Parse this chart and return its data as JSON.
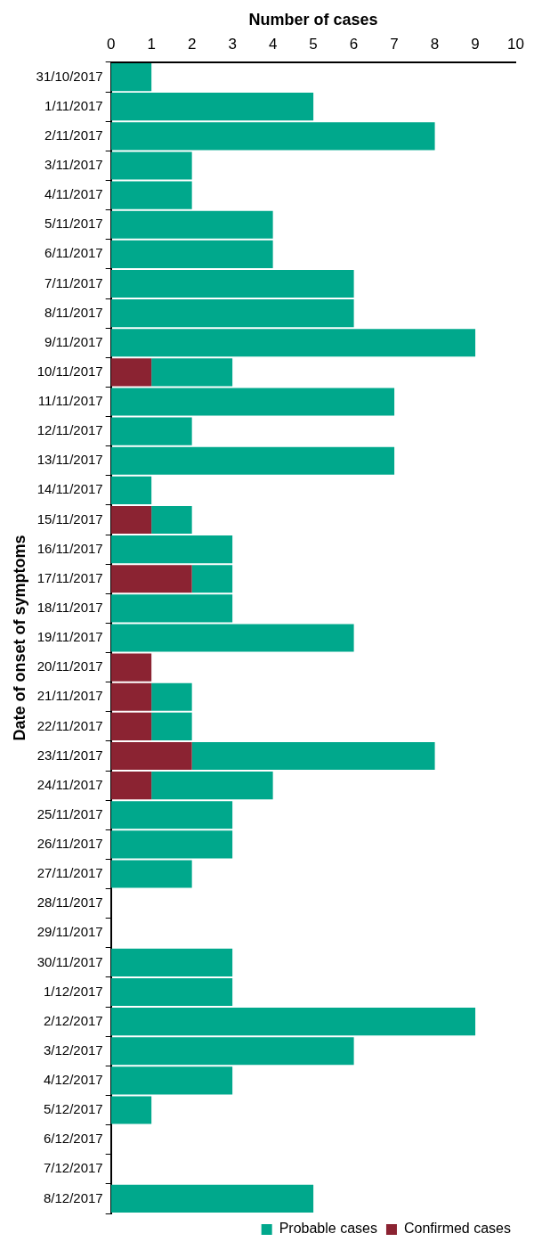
{
  "chart_data": {
    "type": "bar",
    "orientation": "horizontal",
    "stacked": true,
    "xlabel": "Number of cases",
    "ylabel": "Date of onset of symptoms",
    "categories": [
      "31/10/2017",
      "1/11/2017",
      "2/11/2017",
      "3/11/2017",
      "4/11/2017",
      "5/11/2017",
      "6/11/2017",
      "7/11/2017",
      "8/11/2017",
      "9/11/2017",
      "10/11/2017",
      "11/11/2017",
      "12/11/2017",
      "13/11/2017",
      "14/11/2017",
      "15/11/2017",
      "16/11/2017",
      "17/11/2017",
      "18/11/2017",
      "19/11/2017",
      "20/11/2017",
      "21/11/2017",
      "22/11/2017",
      "23/11/2017",
      "24/11/2017",
      "25/11/2017",
      "26/11/2017",
      "27/11/2017",
      "28/11/2017",
      "29/11/2017",
      "30/11/2017",
      "1/12/2017",
      "2/12/2017",
      "3/12/2017",
      "4/12/2017",
      "5/12/2017",
      "6/12/2017",
      "7/12/2017",
      "8/12/2017"
    ],
    "series": [
      {
        "name": "Confirmed cases",
        "color": "#8b2332",
        "values": [
          null,
          null,
          null,
          null,
          null,
          null,
          null,
          null,
          null,
          null,
          1,
          null,
          null,
          null,
          null,
          1,
          null,
          2,
          null,
          null,
          1,
          1,
          1,
          2,
          1,
          null,
          null,
          null,
          null,
          null,
          null,
          null,
          null,
          null,
          null,
          null,
          null,
          null,
          null
        ]
      },
      {
        "name": "Probable cases",
        "color": "#00a88c",
        "values": [
          1,
          5,
          8,
          2,
          2,
          4,
          4,
          6,
          6,
          9,
          2,
          7,
          2,
          7,
          1,
          1,
          3,
          1,
          3,
          6,
          null,
          1,
          1,
          6,
          3,
          3,
          3,
          2,
          null,
          null,
          3,
          3,
          9,
          6,
          3,
          1,
          null,
          null,
          5
        ]
      }
    ],
    "xlim": [
      0,
      10
    ],
    "xticks": [
      0,
      1,
      2,
      3,
      4,
      5,
      6,
      7,
      8,
      9,
      10
    ],
    "grid": false,
    "legend": "bottom right"
  }
}
